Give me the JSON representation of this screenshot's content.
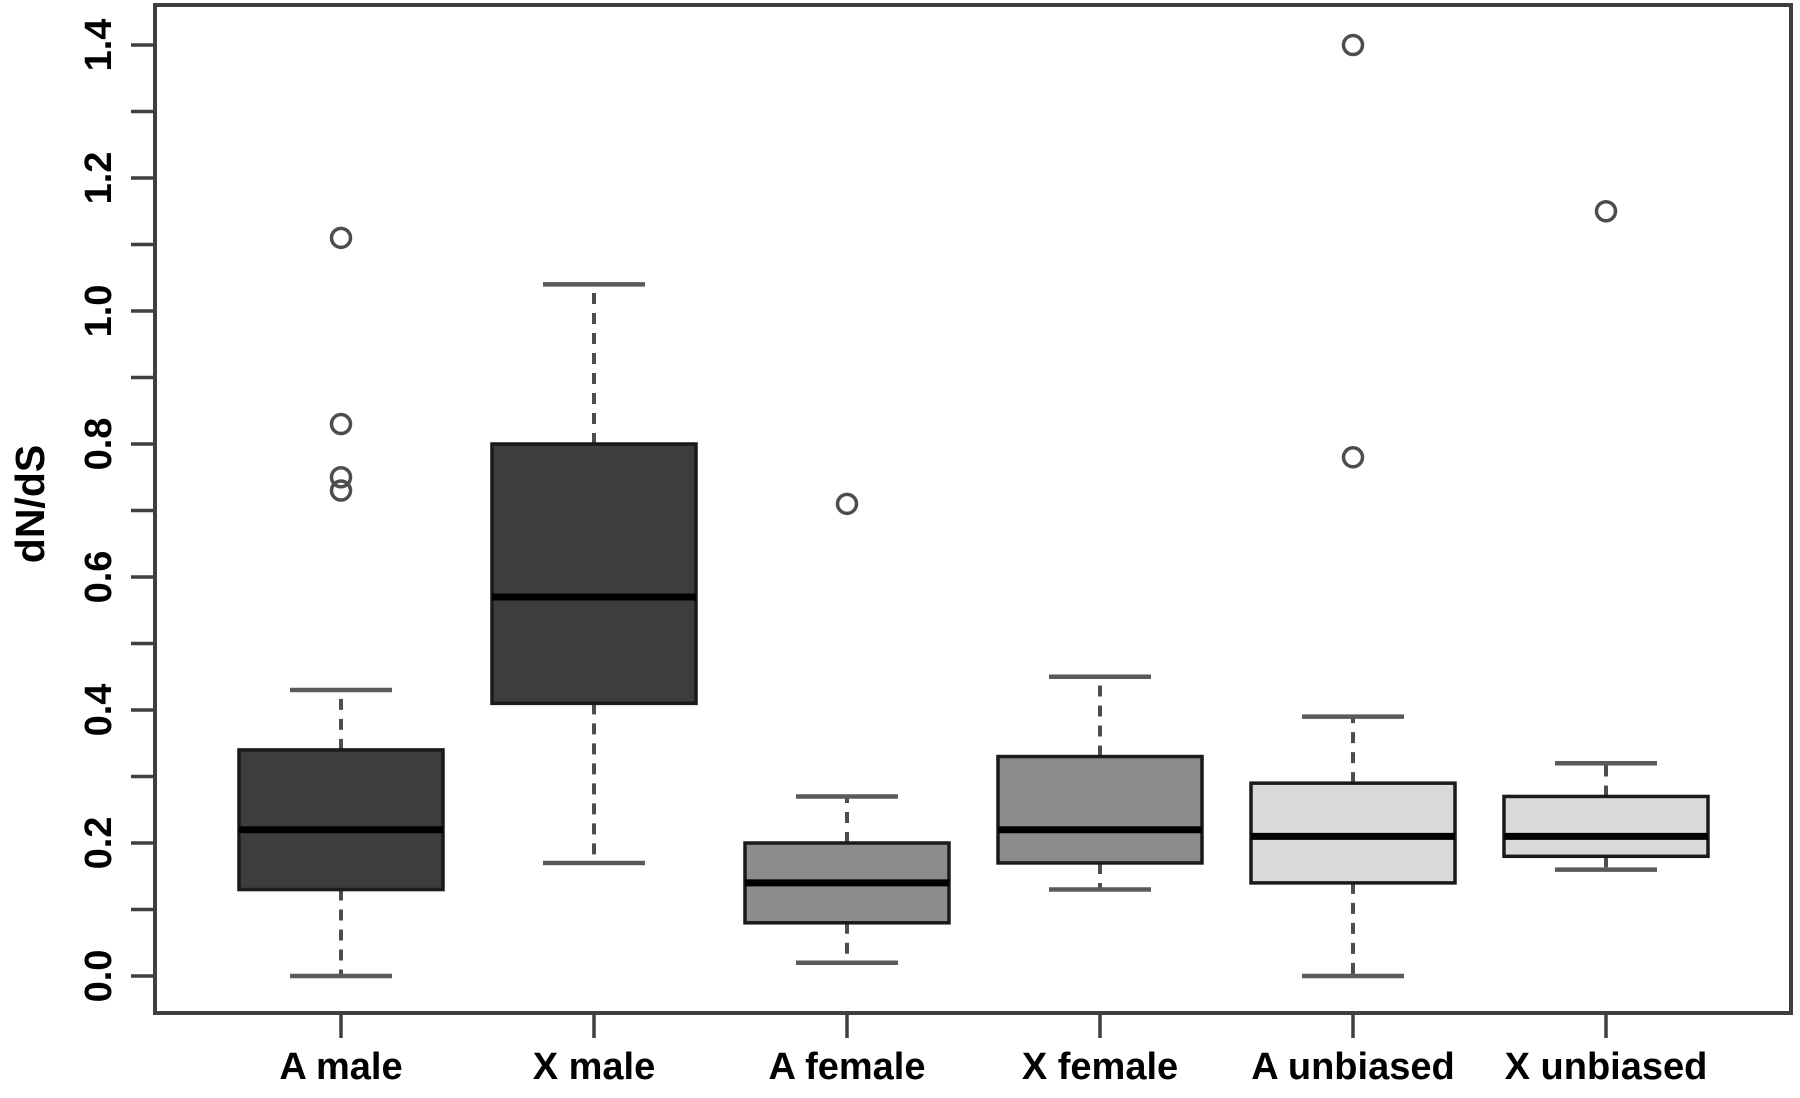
{
  "chart_data": {
    "type": "boxplot",
    "title": "",
    "xlabel": "",
    "ylabel": "dN/dS",
    "ylim": [
      -0.06,
      1.46
    ],
    "grid": false,
    "legend": "none",
    "categories": [
      "A male",
      "X male",
      "A female",
      "X female",
      "A unbiased",
      "X unbiased"
    ],
    "y_axis": {
      "label": "dN/dS",
      "tick_values": [
        0.0,
        0.1,
        0.2,
        0.3,
        0.4,
        0.5,
        0.6,
        0.7,
        0.8,
        0.9,
        1.0,
        1.1,
        1.2,
        1.3,
        1.4
      ],
      "labeled_ticks": [
        {
          "value": 0.0,
          "label": "0.0"
        },
        {
          "value": 0.2,
          "label": "0.2"
        },
        {
          "value": 0.4,
          "label": "0.4"
        },
        {
          "value": 0.6,
          "label": "0.6"
        },
        {
          "value": 0.8,
          "label": "0.8"
        },
        {
          "value": 1.0,
          "label": "1.0"
        },
        {
          "value": 1.2,
          "label": "1.2"
        },
        {
          "value": 1.4,
          "label": "1.4"
        }
      ]
    },
    "series": [
      {
        "category": "A male",
        "whisker_low": 0.0,
        "q1": 0.13,
        "median": 0.22,
        "q3": 0.34,
        "whisker_high": 0.43,
        "outliers": [
          0.73,
          0.75,
          0.83,
          1.11
        ],
        "fill": "#3d3d3d"
      },
      {
        "category": "X male",
        "whisker_low": 0.17,
        "q1": 0.41,
        "median": 0.57,
        "q3": 0.8,
        "whisker_high": 1.04,
        "outliers": [],
        "fill": "#3d3d3d"
      },
      {
        "category": "A female",
        "whisker_low": 0.02,
        "q1": 0.08,
        "median": 0.14,
        "q3": 0.2,
        "whisker_high": 0.27,
        "outliers": [
          0.71
        ],
        "fill": "#8c8c8c"
      },
      {
        "category": "X female",
        "whisker_low": 0.13,
        "q1": 0.17,
        "median": 0.22,
        "q3": 0.33,
        "whisker_high": 0.45,
        "outliers": [],
        "fill": "#8c8c8c"
      },
      {
        "category": "A unbiased",
        "whisker_low": 0.0,
        "q1": 0.14,
        "median": 0.21,
        "q3": 0.29,
        "whisker_high": 0.39,
        "outliers": [
          0.78,
          1.4
        ],
        "fill": "#d9d9d9"
      },
      {
        "category": "X unbiased",
        "whisker_low": 0.16,
        "q1": 0.18,
        "median": 0.21,
        "q3": 0.27,
        "whisker_high": 0.32,
        "outliers": [
          1.15
        ],
        "fill": "#d9d9d9"
      }
    ],
    "colors": {
      "dark_fill": "#3d3d3d",
      "medium_fill": "#8c8c8c",
      "light_fill": "#d9d9d9",
      "box_border": "#1a1a1a",
      "median_line": "#000000",
      "whisker_line": "#4d4d4d",
      "whisker_cap": "#5a5a5a",
      "outlier_stroke": "#4d4d4d",
      "axis": "#3f3f3f",
      "background": "#ffffff"
    }
  }
}
